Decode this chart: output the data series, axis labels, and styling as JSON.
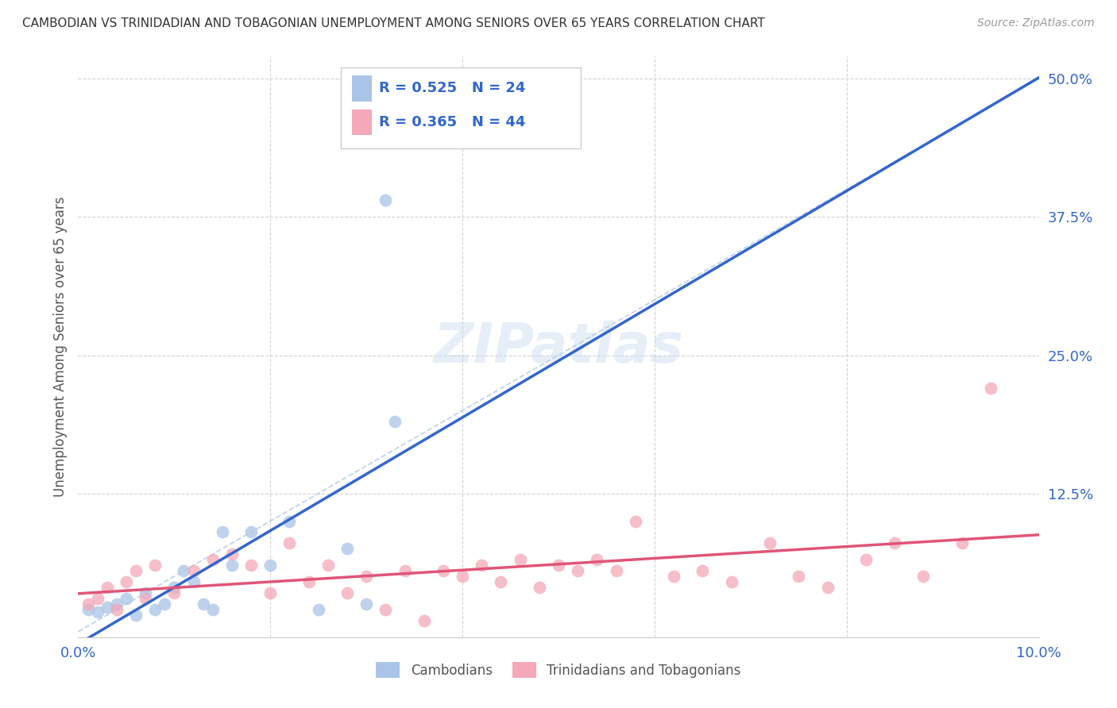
{
  "title": "CAMBODIAN VS TRINIDADIAN AND TOBAGONIAN UNEMPLOYMENT AMONG SENIORS OVER 65 YEARS CORRELATION CHART",
  "source": "Source: ZipAtlas.com",
  "ylabel": "Unemployment Among Seniors over 65 years",
  "xlim": [
    0.0,
    0.1
  ],
  "ylim": [
    -0.005,
    0.52
  ],
  "grid_color": "#c8c8c8",
  "background_color": "#ffffff",
  "watermark": "ZIPatlas",
  "cambodian_color": "#aac4e8",
  "trinidadian_color": "#f4a8b8",
  "cambodian_line_color": "#3366cc",
  "trinidadian_line_color": "#e05577",
  "diagonal_line_color": "#b8d0e8",
  "R_cambodian": 0.525,
  "N_cambodian": 24,
  "R_trinidadian": 0.365,
  "N_trinidadian": 44,
  "legend_color": "#3366cc",
  "cambodian_x": [
    0.001,
    0.002,
    0.003,
    0.004,
    0.005,
    0.006,
    0.007,
    0.008,
    0.009,
    0.01,
    0.011,
    0.012,
    0.013,
    0.014,
    0.015,
    0.016,
    0.018,
    0.02,
    0.022,
    0.025,
    0.028,
    0.03,
    0.032,
    0.033
  ],
  "cambodian_y": [
    0.02,
    0.018,
    0.022,
    0.025,
    0.03,
    0.015,
    0.035,
    0.02,
    0.025,
    0.04,
    0.055,
    0.045,
    0.025,
    0.02,
    0.09,
    0.06,
    0.09,
    0.06,
    0.1,
    0.02,
    0.075,
    0.025,
    0.39,
    0.19
  ],
  "trinidadian_x": [
    0.001,
    0.002,
    0.003,
    0.004,
    0.005,
    0.006,
    0.007,
    0.008,
    0.01,
    0.012,
    0.014,
    0.016,
    0.018,
    0.02,
    0.022,
    0.024,
    0.026,
    0.028,
    0.03,
    0.032,
    0.034,
    0.036,
    0.038,
    0.04,
    0.042,
    0.044,
    0.046,
    0.048,
    0.05,
    0.052,
    0.054,
    0.056,
    0.058,
    0.062,
    0.065,
    0.068,
    0.072,
    0.075,
    0.078,
    0.082,
    0.085,
    0.088,
    0.092,
    0.095
  ],
  "trinidadian_y": [
    0.025,
    0.03,
    0.04,
    0.02,
    0.045,
    0.055,
    0.03,
    0.06,
    0.035,
    0.055,
    0.065,
    0.07,
    0.06,
    0.035,
    0.08,
    0.045,
    0.06,
    0.035,
    0.05,
    0.02,
    0.055,
    0.01,
    0.055,
    0.05,
    0.06,
    0.045,
    0.065,
    0.04,
    0.06,
    0.055,
    0.065,
    0.055,
    0.1,
    0.05,
    0.055,
    0.045,
    0.08,
    0.05,
    0.04,
    0.065,
    0.08,
    0.05,
    0.08,
    0.22
  ]
}
